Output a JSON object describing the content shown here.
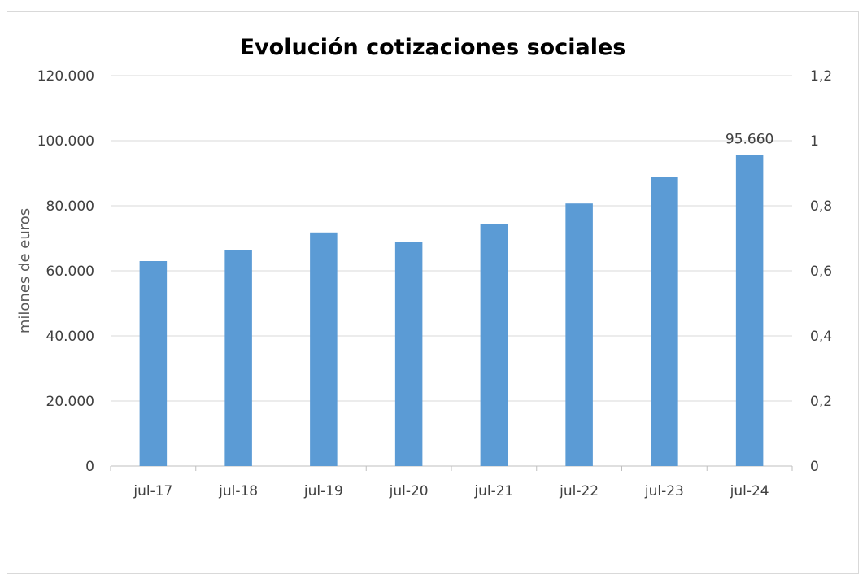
{
  "chart_data": {
    "type": "bar",
    "title": "Evolución cotizaciones sociales",
    "ylabel": "milones de euros",
    "categories": [
      "jul-17",
      "jul-18",
      "jul-19",
      "jul-20",
      "jul-21",
      "jul-22",
      "jul-23",
      "jul-24"
    ],
    "values": [
      63000,
      66500,
      71800,
      69000,
      74300,
      80700,
      89000,
      95660
    ],
    "ylim": [
      0,
      120000
    ],
    "yticks": [
      "0",
      "20.000",
      "40.000",
      "60.000",
      "80.000",
      "100.000",
      "120.000"
    ],
    "y2lim": [
      0,
      1.2
    ],
    "y2ticks": [
      "0",
      "0,2",
      "0,4",
      "0,6",
      "0,8",
      "1",
      "1,2"
    ],
    "data_labels": [
      {
        "index": 7,
        "text": "95.660"
      }
    ],
    "bar_color": "#5b9bd5",
    "grid": true,
    "legend": "none"
  }
}
